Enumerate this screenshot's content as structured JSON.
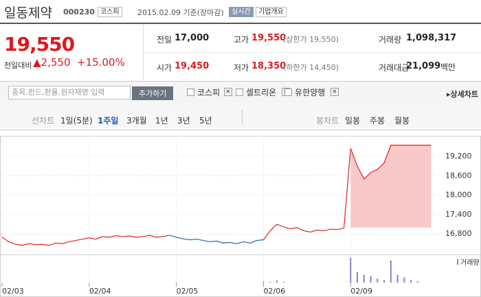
{
  "header": {
    "name": "일동제약",
    "code": "000230",
    "market": "코스피",
    "date": "2015.02.09 기준(장마감)",
    "realtime": "실시간",
    "company_info": "기업개요"
  },
  "price": {
    "current": "19,550",
    "change_label": "전일대비",
    "change": "2,550",
    "change_rate": "+15.00%"
  },
  "stats": [
    {
      "label": "전일",
      "value": "17,000"
    },
    {
      "label": "고가",
      "value": "19,550",
      "note": "(상한가 19,550)"
    },
    {
      "label": "거래량",
      "value": "1,098,317"
    },
    {
      "label": "시가",
      "value": "19,450"
    },
    {
      "label": "저가",
      "value": "18,350",
      "note": "(하한가 14,450)"
    },
    {
      "label": "거래대금",
      "value": "21,099",
      "unit": "백만"
    }
  ],
  "compare": {
    "placeholder": "종목,펀드,환율,원자재명 입력",
    "button": "추가하기",
    "options": [
      "코스피",
      "셀트리온",
      "유한양행"
    ],
    "detail": "상세차트"
  },
  "tabs": {
    "line_label": "선차트",
    "line": [
      "1일(5분)",
      "1주일",
      "3개월",
      "1년",
      "3년",
      "5년"
    ],
    "selected": 1,
    "candle_label": "봉차트",
    "candle": [
      "일봉",
      "주봉",
      "월봉"
    ]
  },
  "chart_data": {
    "type": "line",
    "xlim": [
      0,
      65.3
    ],
    "xticks": [
      {
        "value": 0,
        "label": "02/03"
      },
      {
        "value": 13,
        "label": "02/04"
      },
      {
        "value": 26,
        "label": "02/05"
      },
      {
        "value": 39,
        "label": "02/06"
      },
      {
        "value": 52,
        "label": "02/09"
      }
    ],
    "ylim": [
      16230,
      19690
    ],
    "yticks": [
      {
        "value": 16800,
        "label": "16,800"
      },
      {
        "value": 17400,
        "label": "17,400"
      },
      {
        "value": 18000,
        "label": "18,000"
      },
      {
        "value": 18600,
        "label": "18,600"
      },
      {
        "value": 19200,
        "label": "19,200"
      }
    ],
    "grid": true,
    "series": [
      {
        "color": "#e02020",
        "values": [
          16700,
          16560,
          16480,
          16450,
          16500,
          16470,
          16480,
          16450,
          16520,
          16500,
          16560,
          16600,
          16640,
          16680,
          16640,
          16720,
          16700,
          16750,
          16720,
          16740,
          16700,
          16720,
          16760,
          16700,
          16720,
          16760,
          null,
          null,
          null,
          null,
          null,
          null,
          null,
          null,
          null,
          null,
          null,
          null,
          null,
          16620,
          16900,
          17100,
          17020,
          16960,
          17000,
          16900,
          16860,
          16920,
          16900,
          16950,
          16940,
          16980,
          19450,
          null,
          null,
          null,
          null,
          null,
          null,
          null,
          null,
          null,
          null,
          null,
          null
        ]
      },
      {
        "color": "#2a64b0",
        "values": [
          null,
          null,
          null,
          null,
          null,
          null,
          null,
          null,
          null,
          null,
          null,
          null,
          null,
          null,
          null,
          null,
          null,
          null,
          null,
          null,
          null,
          null,
          null,
          null,
          null,
          16760,
          16700,
          16650,
          16620,
          16640,
          16600,
          16560,
          16580,
          16520,
          16540,
          16500,
          16560,
          16520,
          16600,
          16620,
          null,
          null,
          null,
          null,
          null,
          null,
          null,
          null,
          null,
          null,
          null,
          null,
          null,
          null,
          null,
          null,
          null,
          null,
          null,
          null,
          null,
          null,
          null,
          null,
          null
        ]
      },
      {
        "color": "#e02020",
        "fill": "#f9c9c9",
        "fill_to": 17000,
        "values": [
          null,
          null,
          null,
          null,
          null,
          null,
          null,
          null,
          null,
          null,
          null,
          null,
          null,
          null,
          null,
          null,
          null,
          null,
          null,
          null,
          null,
          null,
          null,
          null,
          null,
          null,
          null,
          null,
          null,
          null,
          null,
          null,
          null,
          null,
          null,
          null,
          null,
          null,
          null,
          null,
          null,
          null,
          null,
          null,
          null,
          null,
          null,
          null,
          null,
          null,
          null,
          null,
          19450,
          18900,
          18500,
          18700,
          18800,
          19000,
          19550,
          19550,
          19550,
          19550,
          19550,
          19550,
          19550
        ]
      }
    ],
    "volume": {
      "name": "거래량",
      "color": "#8a7fc7",
      "values": [
        null,
        null,
        null,
        null,
        null,
        null,
        null,
        null,
        null,
        null,
        null,
        null,
        null,
        null,
        null,
        null,
        null,
        null,
        null,
        null,
        null,
        null,
        null,
        null,
        null,
        null,
        null,
        null,
        null,
        null,
        null,
        null,
        null,
        null,
        null,
        null,
        null,
        null,
        null,
        4,
        3,
        8,
        3,
        null,
        null,
        null,
        null,
        null,
        null,
        null,
        null,
        null,
        95,
        40,
        30,
        25,
        15,
        10,
        85,
        30,
        20,
        10,
        5,
        null,
        null
      ],
      "vlim": [
        0,
        100
      ]
    }
  }
}
